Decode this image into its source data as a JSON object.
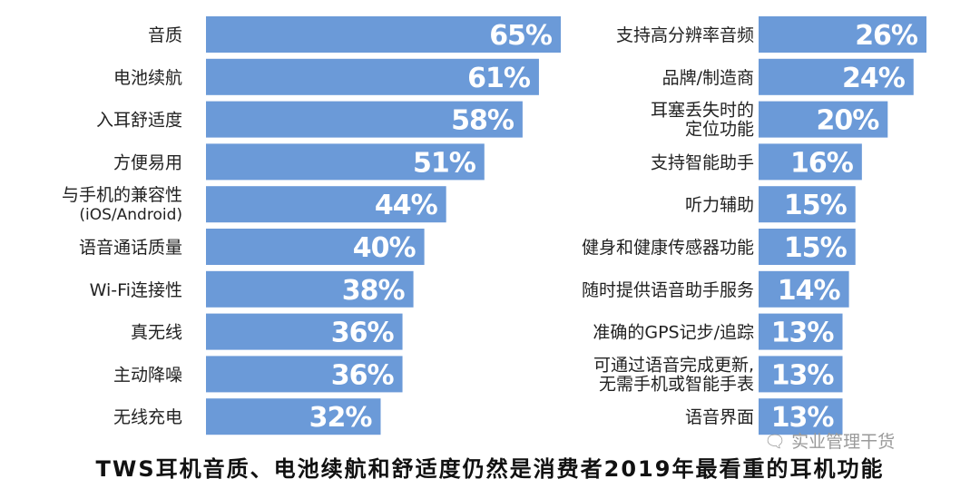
{
  "chart_data": [
    {
      "type": "bar",
      "orientation": "horizontal",
      "categories": [
        "音质",
        "电池续航",
        "入耳舒适度",
        "方便易用",
        "与手机的兼容性\n(iOS/Android)",
        "语音通话质量",
        "Wi-Fi连接性",
        "真无线",
        "主动降噪",
        "无线充电"
      ],
      "values": [
        65,
        61,
        58,
        51,
        44,
        40,
        38,
        36,
        36,
        32
      ],
      "value_labels": [
        "65%",
        "61%",
        "58%",
        "51%",
        "44%",
        "40%",
        "38%",
        "36%",
        "36%",
        "32%"
      ],
      "unit": "%",
      "xlim": [
        0,
        65
      ],
      "grid": false,
      "bar_color": "#6b9ad8"
    },
    {
      "type": "bar",
      "orientation": "horizontal",
      "categories": [
        "支持高分辨率音频",
        "品牌/制造商",
        "耳塞丢失时的\n定位功能",
        "支持智能助手",
        "听力辅助",
        "健身和健康传感器功能",
        "随时提供语音助手服务",
        "准确的GPS记步/追踪",
        "可通过语音完成更新,\n无需手机或智能手表",
        "语音界面"
      ],
      "values": [
        26,
        24,
        20,
        16,
        15,
        15,
        14,
        13,
        13,
        13
      ],
      "value_labels": [
        "26%",
        "24%",
        "20%",
        "16%",
        "15%",
        "15%",
        "14%",
        "13%",
        "13%",
        "13%"
      ],
      "unit": "%",
      "xlim": [
        0,
        26
      ],
      "grid": false,
      "bar_color": "#6b9ad8"
    }
  ],
  "caption": "TWS耳机音质、电池续航和舒适度仍然是消费者2019年最看重的耳机功能",
  "watermark": "实业管理干货"
}
